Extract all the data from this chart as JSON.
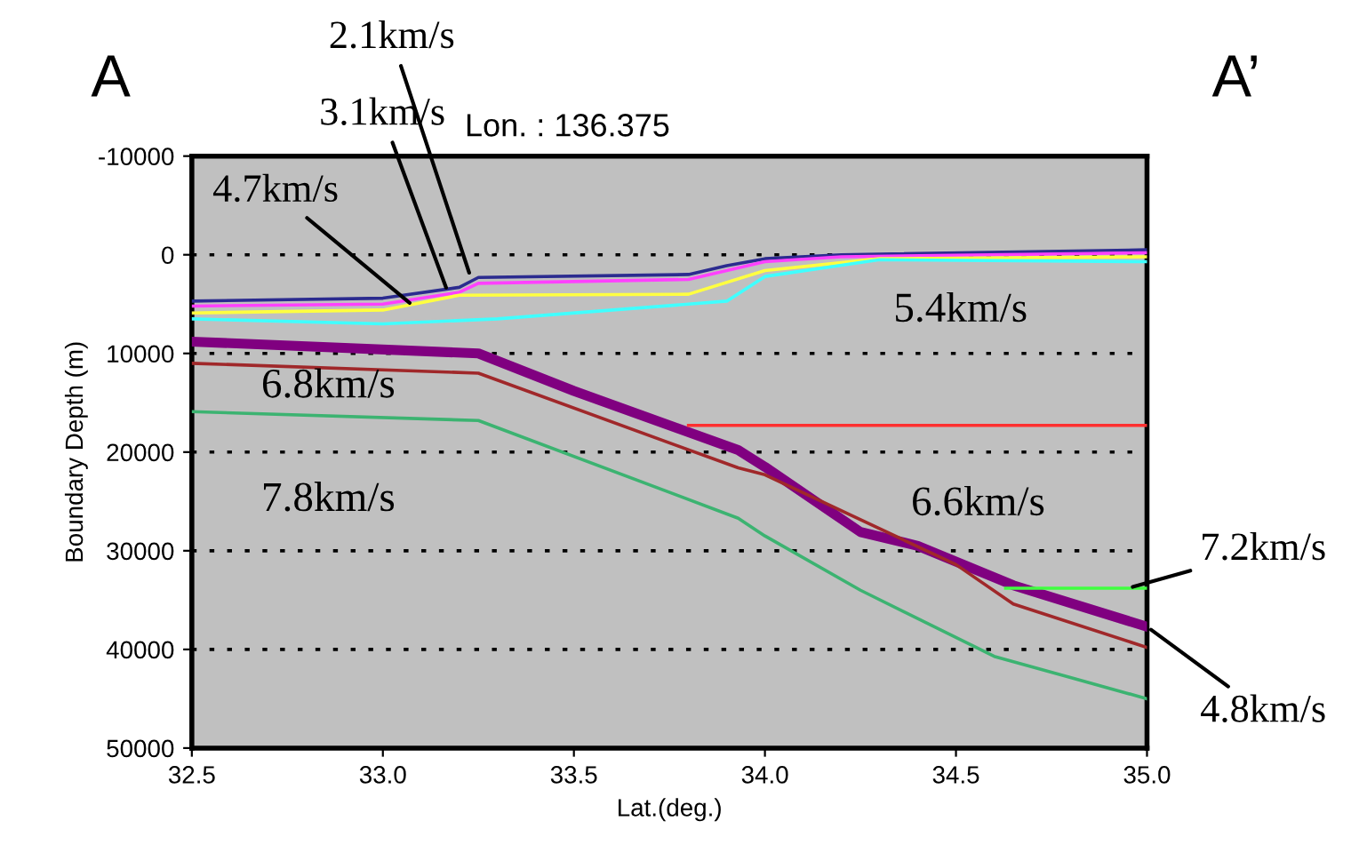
{
  "chart_data": {
    "type": "line",
    "xlabel": "Lat.(deg.)",
    "ylabel": "Boundary Depth (m)",
    "xlim": [
      32.5,
      35.0
    ],
    "xticks": [
      32.5,
      {
        "value": 33.0,
        "label": "33.0"
      },
      33.5,
      {
        "value": 34.0,
        "label": "34.0"
      },
      34.5,
      {
        "value": 35.0,
        "label": "35.0"
      }
    ],
    "ylim": [
      50000,
      -10000
    ],
    "yticks": [
      -10000,
      0,
      10000,
      20000,
      30000,
      40000,
      50000
    ],
    "grid": "y",
    "line_style": "solid",
    "marker": "none",
    "series": [
      {
        "color": "#2b2b8f",
        "x": [
          32.5,
          33.0,
          33.2,
          33.25,
          33.8,
          33.9,
          34.0,
          34.2,
          35.0
        ],
        "values": [
          4700,
          4400,
          3300,
          2300,
          2000,
          1100,
          400,
          0,
          -500
        ]
      },
      {
        "color": "#ff40ff",
        "x": [
          32.5,
          33.0,
          33.2,
          33.25,
          33.8,
          34.0,
          34.2,
          35.0
        ],
        "values": [
          5200,
          5000,
          3800,
          2900,
          2500,
          700,
          200,
          -200
        ]
      },
      {
        "color": "#ffff40",
        "x": [
          32.5,
          33.0,
          33.2,
          33.8,
          34.0,
          34.3,
          35.0
        ],
        "values": [
          5900,
          5600,
          4100,
          4000,
          1600,
          400,
          200
        ]
      },
      {
        "color": "#40ffff",
        "x": [
          32.5,
          33.0,
          33.3,
          33.8,
          33.9,
          34.0,
          34.3,
          35.0
        ],
        "values": [
          6500,
          7000,
          6500,
          5000,
          4700,
          2200,
          500,
          700
        ]
      },
      {
        "color": "#800080",
        "x": [
          32.5,
          33.25,
          33.5,
          33.93,
          34.0,
          34.25,
          34.4,
          34.65,
          35.0
        ],
        "values": [
          8800,
          10000,
          13800,
          19800,
          21500,
          28100,
          29500,
          33500,
          37700
        ]
      },
      {
        "color": "#a0282a",
        "x": [
          32.5,
          33.25,
          33.93,
          34.0,
          34.5,
          34.65,
          35.0
        ],
        "values": [
          11000,
          12000,
          21600,
          22300,
          31400,
          35400,
          39800
        ]
      },
      {
        "color": "#3cb371",
        "x": [
          32.5,
          33.25,
          33.93,
          34.0,
          34.25,
          34.6,
          35.0
        ],
        "values": [
          15900,
          16800,
          26700,
          28500,
          34000,
          40700,
          45000
        ]
      },
      {
        "color": "#ff3030",
        "x": [
          33.8,
          35.0
        ],
        "values": [
          17300,
          17300
        ]
      },
      {
        "color": "#40ff40",
        "x": [
          34.63,
          35.0
        ],
        "values": [
          33800,
          33800
        ]
      }
    ],
    "annotations": [
      "A",
      "A’",
      "Lon. : 136.375",
      {
        "text": "2.1km/s",
        "x": 33.23,
        "y": 2300
      },
      {
        "text": "3.1km/s",
        "x": 33.17,
        "y": 3800
      },
      {
        "text": "4.7km/s",
        "x": 33.08,
        "y": 5200
      },
      {
        "text": "7.2km/s",
        "x": 34.95,
        "y": 33800
      },
      {
        "text": "4.8km/s",
        "x": 35.0,
        "y": 37700
      },
      "5.4km/s",
      "6.8km/s",
      "7.8km/s",
      "6.6km/s"
    ]
  }
}
